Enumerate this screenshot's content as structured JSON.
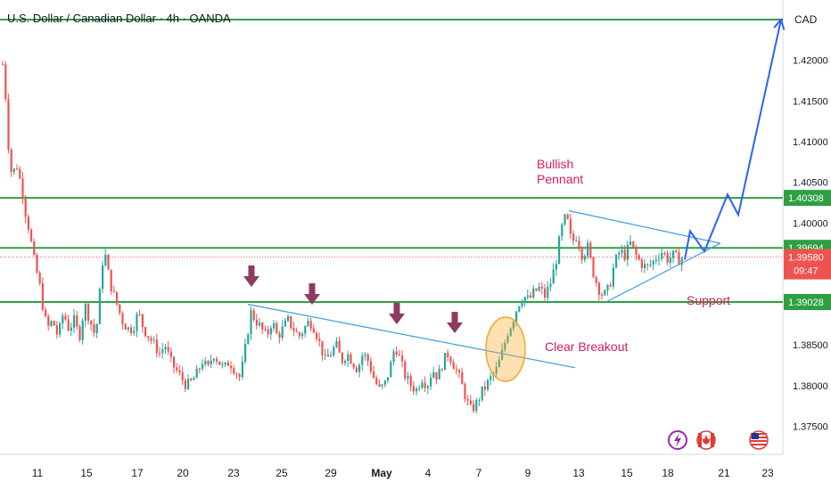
{
  "header": {
    "title": "U.S. Dollar / Canadian Dollar · 4h · OANDA"
  },
  "price_axis": {
    "currency": "CAD"
  },
  "colors": {
    "up": "#26a69a",
    "down": "#ef5350",
    "level": "#2ea043",
    "trend": "#4aa3df",
    "projection": "#2962ff",
    "annotation": "#d81b60",
    "marker": "#8e3b5e"
  },
  "chart_data": {
    "type": "candlestick",
    "instrument": "U.S. Dollar / Canadian Dollar",
    "timeframe": "4h",
    "source": "OANDA",
    "ylim": [
      1.37,
      1.426
    ],
    "y_ticks": [
      "1.42000",
      "1.41500",
      "1.41000",
      "1.40500",
      "1.40000",
      "1.38500",
      "1.38000",
      "1.37500"
    ],
    "x_ticks": [
      "11",
      "15",
      "17",
      "20",
      "23",
      "25",
      "29",
      "May",
      "4",
      "7",
      "9",
      "13",
      "15",
      "18",
      "21",
      "23"
    ],
    "levels": [
      {
        "price": 1.425,
        "label": ""
      },
      {
        "price": 1.40308,
        "label": "1.40308"
      },
      {
        "price": 1.39694,
        "label": "1.39694"
      },
      {
        "price": 1.39028,
        "label": "1.39028"
      }
    ],
    "current_price": {
      "value": "1.39580",
      "countdown": "09:47"
    },
    "annotations": {
      "pennant": "Bullish\nPennant",
      "breakout": "Clear Breakout",
      "support": "Support"
    },
    "close_path": [
      [
        0,
        1.421
      ],
      [
        4,
        1.418
      ],
      [
        8,
        1.41
      ],
      [
        12,
        1.406
      ],
      [
        18,
        1.407
      ],
      [
        24,
        1.404
      ],
      [
        28,
        1.401
      ],
      [
        32,
        1.399
      ],
      [
        36,
        1.396
      ],
      [
        40,
        1.394
      ],
      [
        44,
        1.392
      ],
      [
        48,
        1.389
      ],
      [
        52,
        1.387
      ],
      [
        58,
        1.388
      ],
      [
        64,
        1.386
      ],
      [
        70,
        1.389
      ],
      [
        76,
        1.387
      ],
      [
        82,
        1.388
      ],
      [
        88,
        1.386
      ],
      [
        94,
        1.39
      ],
      [
        100,
        1.388
      ],
      [
        106,
        1.386
      ],
      [
        110,
        1.39
      ],
      [
        113,
        1.395
      ],
      [
        117,
        1.396
      ],
      [
        120,
        1.394
      ],
      [
        124,
        1.392
      ],
      [
        130,
        1.39
      ],
      [
        136,
        1.388
      ],
      [
        142,
        1.387
      ],
      [
        148,
        1.387
      ],
      [
        154,
        1.389
      ],
      [
        160,
        1.387
      ],
      [
        166,
        1.386
      ],
      [
        172,
        1.385
      ],
      [
        178,
        1.384
      ],
      [
        184,
        1.385
      ],
      [
        190,
        1.383
      ],
      [
        196,
        1.382
      ],
      [
        202,
        1.381
      ],
      [
        208,
        1.38
      ],
      [
        214,
        1.3805
      ],
      [
        220,
        1.3815
      ],
      [
        226,
        1.383
      ],
      [
        232,
        1.382
      ],
      [
        238,
        1.384
      ],
      [
        244,
        1.383
      ],
      [
        250,
        1.382
      ],
      [
        256,
        1.383
      ],
      [
        262,
        1.382
      ],
      [
        268,
        1.381
      ],
      [
        272,
        1.383
      ],
      [
        276,
        1.386
      ],
      [
        280,
        1.389
      ],
      [
        286,
        1.388
      ],
      [
        292,
        1.387
      ],
      [
        298,
        1.386
      ],
      [
        304,
        1.388
      ],
      [
        310,
        1.386
      ],
      [
        316,
        1.387
      ],
      [
        322,
        1.388
      ],
      [
        328,
        1.387
      ],
      [
        334,
        1.386
      ],
      [
        340,
        1.387
      ],
      [
        346,
        1.388
      ],
      [
        352,
        1.387
      ],
      [
        358,
        1.385
      ],
      [
        364,
        1.383
      ],
      [
        370,
        1.384
      ],
      [
        376,
        1.385
      ],
      [
        382,
        1.383
      ],
      [
        388,
        1.384
      ],
      [
        394,
        1.383
      ],
      [
        400,
        1.382
      ],
      [
        406,
        1.384
      ],
      [
        412,
        1.383
      ],
      [
        418,
        1.381
      ],
      [
        424,
        1.3795
      ],
      [
        430,
        1.38
      ],
      [
        436,
        1.382
      ],
      [
        442,
        1.385
      ],
      [
        448,
        1.383
      ],
      [
        454,
        1.381
      ],
      [
        460,
        1.38
      ],
      [
        466,
        1.3795
      ],
      [
        472,
        1.381
      ],
      [
        478,
        1.38
      ],
      [
        484,
        1.382
      ],
      [
        490,
        1.381
      ],
      [
        496,
        1.383
      ],
      [
        502,
        1.384
      ],
      [
        508,
        1.3825
      ],
      [
        514,
        1.381
      ],
      [
        520,
        1.379
      ],
      [
        526,
        1.377
      ],
      [
        532,
        1.3775
      ],
      [
        538,
        1.379
      ],
      [
        544,
        1.38
      ],
      [
        550,
        1.381
      ],
      [
        556,
        1.382
      ],
      [
        562,
        1.384
      ],
      [
        568,
        1.3865
      ],
      [
        574,
        1.388
      ],
      [
        580,
        1.39
      ],
      [
        586,
        1.391
      ],
      [
        592,
        1.3905
      ],
      [
        598,
        1.3915
      ],
      [
        604,
        1.392
      ],
      [
        610,
        1.391
      ],
      [
        616,
        1.3925
      ],
      [
        622,
        1.395
      ],
      [
        628,
        1.399
      ],
      [
        634,
        1.401
      ],
      [
        640,
        1.3975
      ],
      [
        646,
        1.3985
      ],
      [
        652,
        1.396
      ],
      [
        658,
        1.397
      ],
      [
        664,
        1.394
      ],
      [
        670,
        1.392
      ],
      [
        676,
        1.391
      ],
      [
        682,
        1.392
      ],
      [
        688,
        1.395
      ],
      [
        694,
        1.3965
      ],
      [
        700,
        1.396
      ],
      [
        706,
        1.3975
      ],
      [
        712,
        1.396
      ],
      [
        718,
        1.395
      ],
      [
        724,
        1.3945
      ],
      [
        730,
        1.395
      ],
      [
        736,
        1.396
      ],
      [
        742,
        1.3965
      ],
      [
        748,
        1.3955
      ],
      [
        754,
        1.396
      ],
      [
        760,
        1.3955
      ],
      [
        766,
        1.3958
      ]
    ],
    "arrows_at_x": [
      282,
      350,
      445,
      510
    ],
    "projection_path": [
      [
        768,
        1.3955
      ],
      [
        774,
        1.399
      ],
      [
        790,
        1.3965
      ],
      [
        816,
        1.4035
      ],
      [
        828,
        1.401
      ],
      [
        876,
        1.425
      ]
    ],
    "descending_trendline": [
      [
        278,
        1.39
      ],
      [
        645,
        1.3822
      ]
    ],
    "pennant_upper": [
      [
        638,
        1.4015
      ],
      [
        808,
        1.3975
      ]
    ],
    "pennant_lower": [
      [
        680,
        1.3903
      ],
      [
        808,
        1.3975
      ]
    ]
  }
}
